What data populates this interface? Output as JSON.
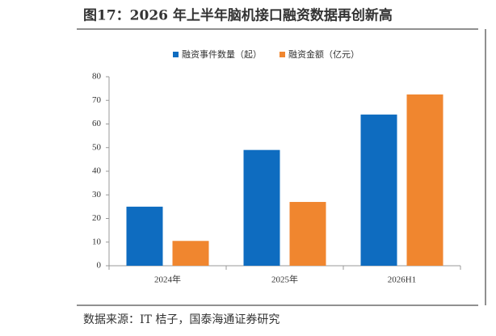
{
  "chart_data": {
    "type": "bar",
    "title": "图17：2026 年上半年脑机接口融资数据再创新高",
    "source": "数据来源：IT 桔子，国泰海通证券研究",
    "categories": [
      "2024年",
      "2025年",
      "2026H1"
    ],
    "series": [
      {
        "name": "融资事件数量（起）",
        "color": "#0e6cc0",
        "values": [
          25,
          49,
          64
        ]
      },
      {
        "name": "融资金额（亿元）",
        "color": "#f0862f",
        "values": [
          10.5,
          27,
          72.5
        ]
      }
    ],
    "ylim": [
      0,
      80
    ],
    "yticks": [
      0,
      10,
      20,
      30,
      40,
      50,
      60,
      70,
      80
    ],
    "grid": false,
    "legend": "top"
  }
}
